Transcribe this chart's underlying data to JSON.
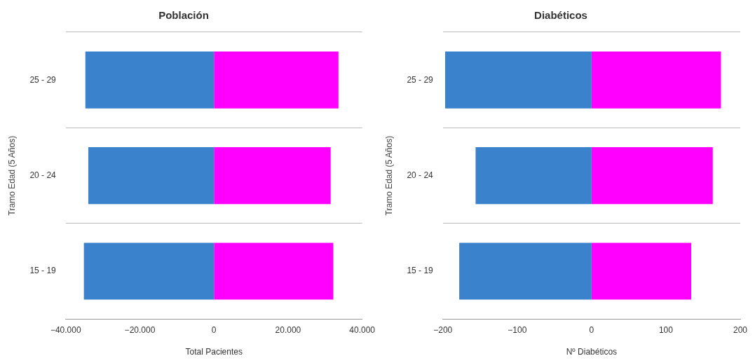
{
  "chart_data": [
    {
      "type": "bar",
      "orientation": "horizontal",
      "stacked": true,
      "title": "Población",
      "xlabel": "Total Pacientes",
      "ylabel": "Tramo Edad (5 Años)",
      "categories": [
        "25 - 29",
        "20 - 24",
        "15 - 19"
      ],
      "series": [
        {
          "color": "#3b82cc",
          "values": [
            -34700,
            -33900,
            -35100
          ]
        },
        {
          "color": "#ff00ff",
          "values": [
            33600,
            31500,
            32200
          ]
        }
      ],
      "xlim": [
        -40000,
        40000
      ],
      "xticks": [
        {
          "value": -40000,
          "label": "−40.000"
        },
        {
          "value": -20000,
          "label": "−20.000"
        },
        0,
        {
          "value": 20000,
          "label": "20.000"
        },
        {
          "value": 40000,
          "label": "40.000"
        }
      ],
      "grid": "y",
      "legend": false
    },
    {
      "type": "bar",
      "orientation": "horizontal",
      "stacked": true,
      "title": "Diabéticos",
      "xlabel": "Nº Diabéticos",
      "ylabel": "Tramo Edad (5 Años)",
      "categories": [
        "25 - 29",
        "20 - 24",
        "15 - 19"
      ],
      "series": [
        {
          "color": "#3b82cc",
          "values": [
            -197,
            -156,
            -178
          ]
        },
        {
          "color": "#ff00ff",
          "values": [
            174,
            163,
            134
          ]
        }
      ],
      "xlim": [
        -200,
        200
      ],
      "xticks": [
        -200,
        -100,
        0,
        100,
        200
      ],
      "grid": "y",
      "legend": false
    }
  ]
}
